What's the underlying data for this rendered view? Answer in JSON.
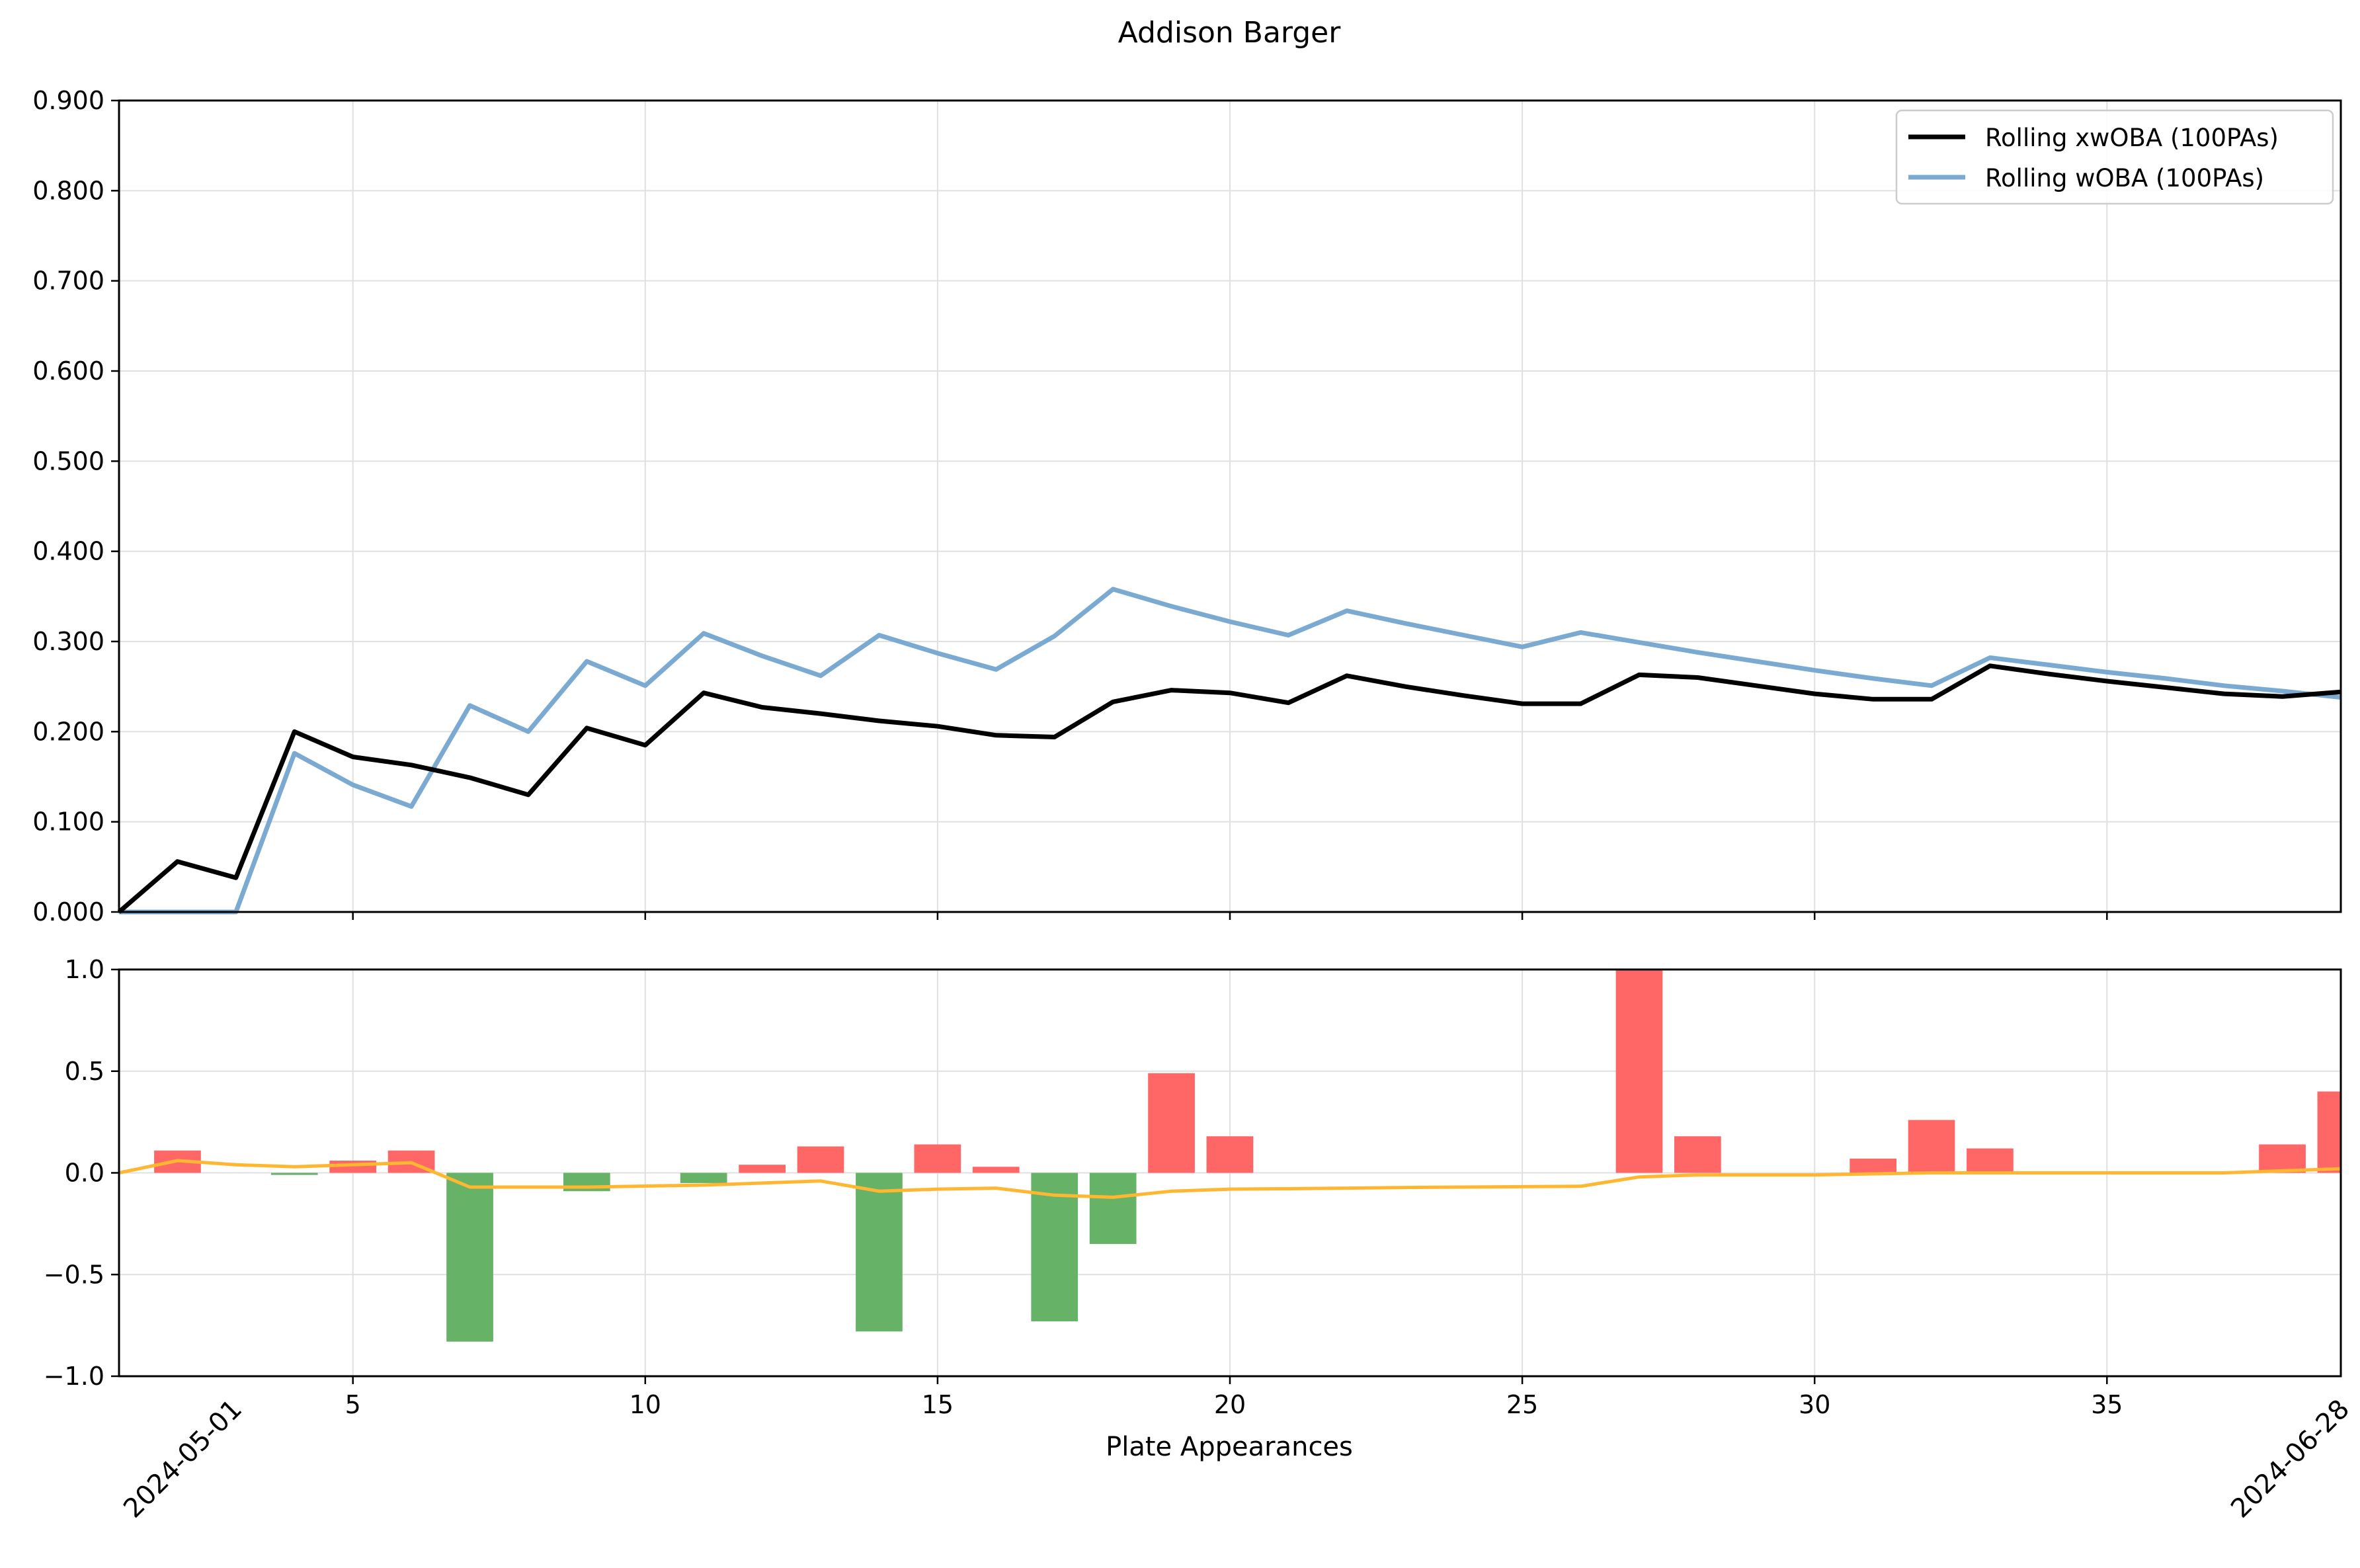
{
  "title": "Addison Barger",
  "date_labels": {
    "start": "2024-05-01",
    "end": "2024-06-28"
  },
  "colors": {
    "xwoba_line": "#000000",
    "woba_line": "#7aaad2",
    "bar_positive": "#ff6666",
    "bar_negative": "#66b266",
    "trend_line": "#ffb732",
    "grid": "#e0e0e0"
  },
  "chart_data": [
    {
      "type": "line",
      "title": "Addison Barger",
      "xlabel": "",
      "ylabel": "",
      "xlim": [
        1,
        39
      ],
      "ylim": [
        0.0,
        0.9
      ],
      "grid": true,
      "legend_position": "top-right",
      "x_ticks": [
        5,
        10,
        15,
        20,
        25,
        30,
        35
      ],
      "x_tick_labels": [
        "",
        "",
        "",
        "",
        "",
        "",
        ""
      ],
      "y_ticks": [
        0.0,
        0.1,
        0.2,
        0.3,
        0.4,
        0.5,
        0.6,
        0.7,
        0.8,
        0.9
      ],
      "y_tick_labels": [
        "0.000",
        "0.100",
        "0.200",
        "0.300",
        "0.400",
        "0.500",
        "0.600",
        "0.700",
        "0.800",
        "0.900"
      ],
      "x": [
        1,
        2,
        3,
        4,
        5,
        6,
        7,
        8,
        9,
        10,
        11,
        12,
        13,
        14,
        15,
        16,
        17,
        18,
        19,
        20,
        21,
        22,
        23,
        24,
        25,
        26,
        27,
        28,
        29,
        30,
        31,
        32,
        33,
        34,
        35,
        36,
        37,
        38,
        39
      ],
      "series": [
        {
          "name": "Rolling xwOBA (100PAs)",
          "values": [
            0.0,
            0.056,
            0.038,
            0.2,
            0.172,
            0.163,
            0.149,
            0.13,
            0.204,
            0.185,
            0.243,
            0.227,
            0.22,
            0.212,
            0.206,
            0.196,
            0.194,
            0.233,
            0.246,
            0.243,
            0.232,
            0.262,
            0.25,
            0.24,
            0.231,
            0.231,
            0.263,
            0.26,
            0.251,
            0.242,
            0.236,
            0.236,
            0.273,
            0.264,
            0.256,
            0.249,
            0.242,
            0.239,
            0.244
          ]
        },
        {
          "name": "Rolling wOBA (100PAs)",
          "values": [
            0.0,
            0.0,
            0.0,
            0.176,
            0.141,
            0.117,
            0.229,
            0.2,
            0.278,
            0.251,
            0.309,
            0.284,
            0.262,
            0.307,
            0.287,
            0.269,
            0.306,
            0.358,
            0.339,
            0.322,
            0.307,
            0.334,
            0.32,
            0.307,
            0.294,
            0.31,
            0.299,
            0.288,
            0.278,
            0.268,
            0.259,
            0.251,
            0.282,
            0.274,
            0.266,
            0.259,
            0.251,
            0.245,
            0.238
          ]
        }
      ]
    },
    {
      "type": "bar",
      "xlabel": "Plate Appearances",
      "ylabel": "",
      "xlim": [
        1,
        39
      ],
      "ylim": [
        -1.0,
        1.0
      ],
      "grid": true,
      "x_ticks": [
        5,
        10,
        15,
        20,
        25,
        30,
        35
      ],
      "x_tick_labels": [
        "5",
        "10",
        "15",
        "20",
        "25",
        "30",
        "35"
      ],
      "y_ticks": [
        -1.0,
        -0.5,
        0.0,
        0.5,
        1.0
      ],
      "y_tick_labels": [
        "−1.0",
        "−0.5",
        "0.0",
        "0.5",
        "1.0"
      ],
      "bars": {
        "x": [
          1,
          2,
          3,
          4,
          5,
          6,
          7,
          8,
          9,
          10,
          11,
          12,
          13,
          14,
          15,
          16,
          17,
          18,
          19,
          20,
          21,
          22,
          23,
          24,
          25,
          26,
          27,
          28,
          29,
          30,
          31,
          32,
          33,
          34,
          35,
          36,
          37,
          38,
          39
        ],
        "values": [
          0.0,
          0.11,
          0.0,
          -0.01,
          0.06,
          0.11,
          -0.83,
          0.0,
          -0.09,
          0.0,
          -0.05,
          0.04,
          0.13,
          -0.78,
          0.14,
          0.03,
          -0.73,
          -0.35,
          0.49,
          0.18,
          0.0,
          0.0,
          0.0,
          0.0,
          0.0,
          0.0,
          1.0,
          0.18,
          0.0,
          0.0,
          0.07,
          0.26,
          0.12,
          0.0,
          0.0,
          0.0,
          0.0,
          0.14,
          0.4
        ]
      },
      "series": [
        {
          "values": [
            0.0,
            0.06,
            0.04,
            0.03,
            0.04,
            0.05,
            -0.07,
            -0.07,
            -0.07,
            -0.065,
            -0.06,
            -0.05,
            -0.04,
            -0.09,
            -0.08,
            -0.075,
            -0.11,
            -0.12,
            -0.09,
            -0.08,
            -0.078,
            -0.075,
            -0.072,
            -0.07,
            -0.068,
            -0.066,
            -0.02,
            -0.01,
            -0.01,
            -0.01,
            -0.005,
            0.0,
            0.0,
            0.0,
            0.0,
            0.0,
            0.0,
            0.01,
            0.02
          ]
        }
      ]
    }
  ]
}
